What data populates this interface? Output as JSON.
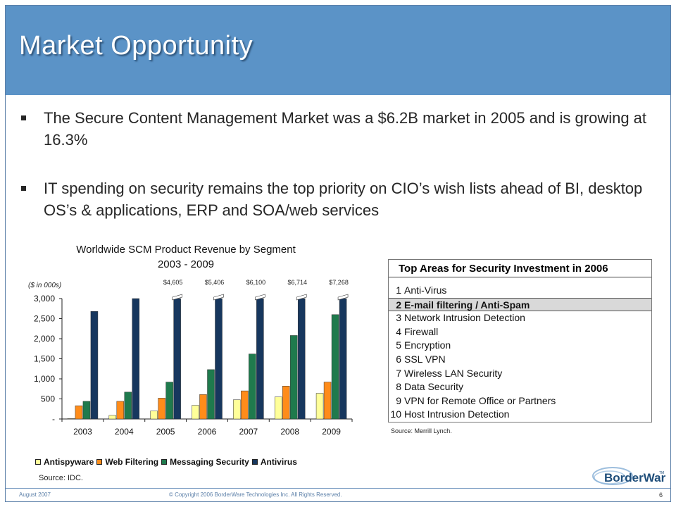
{
  "slide": {
    "title": "Market Opportunity",
    "bullets": [
      "The Secure Content Management Market was a $6.2B market in 2005 and is growing at 16.3%",
      "IT spending on security remains the top priority on CIO’s wish lists ahead of BI, desktop OS’s & applications, ERP and SOA/web services"
    ]
  },
  "chart_data": {
    "type": "bar",
    "title": "Worldwide SCM Product Revenue by Segment",
    "subtitle": "2003 - 2009",
    "ylabel": "($ in 000s)",
    "categories": [
      "2003",
      "2004",
      "2005",
      "2006",
      "2007",
      "2008",
      "2009"
    ],
    "ylim": [
      0,
      3000
    ],
    "yticks": [
      0,
      500,
      1000,
      1500,
      2000,
      2500,
      3000
    ],
    "ytick_labels": [
      "-",
      "500",
      "1,000",
      "1,500",
      "2,000",
      "2,500",
      "3,000"
    ],
    "series": [
      {
        "name": "Antispyware",
        "color": "#ffff99",
        "values": [
          10,
          90,
          200,
          340,
          480,
          550,
          640
        ]
      },
      {
        "name": "Web Filtering",
        "color": "#ff8c1a",
        "values": [
          330,
          440,
          520,
          610,
          700,
          820,
          920
        ]
      },
      {
        "name": "Messaging Security",
        "color": "#1f7a4d",
        "values": [
          440,
          670,
          920,
          1230,
          1620,
          2080,
          2600
        ]
      },
      {
        "name": "Antivirus",
        "color": "#17375e",
        "values": [
          2680,
          3000,
          3000,
          3000,
          3000,
          3000,
          3000
        ]
      }
    ],
    "antivirus_break_labels": [
      "$4,605",
      "$5,406",
      "$6,100",
      "$6,714",
      "$7,268"
    ],
    "antivirus_break_from_index": 2,
    "grid": false,
    "legend": "bottom",
    "source": "Source:  IDC."
  },
  "security_table": {
    "title": "Top Areas for Security Investment in 2006",
    "items": [
      {
        "rank": "1",
        "label": "Anti-Virus"
      },
      {
        "rank": "2",
        "label": "E-mail filtering / Anti-Spam"
      },
      {
        "rank": "3",
        "label": "Network Intrusion Detection"
      },
      {
        "rank": "4",
        "label": "Firewall"
      },
      {
        "rank": "5",
        "label": "Encryption"
      },
      {
        "rank": "6",
        "label": "SSL VPN"
      },
      {
        "rank": "7",
        "label": "Wireless LAN Security"
      },
      {
        "rank": "8",
        "label": "Data Security"
      },
      {
        "rank": "9",
        "label": "VPN for Remote Office or Partners"
      },
      {
        "rank": "10",
        "label": "Host Intrusion Detection"
      }
    ],
    "highlight_rank": "2",
    "source": "Source:  Merrill Lynch."
  },
  "footer": {
    "date": "August 2007",
    "copyright": "© Copyright 2006 BorderWare Technologies Inc. All Rights Reserved.",
    "page": "6",
    "logo_text": "BorderWare",
    "logo_tm": "TM"
  },
  "colors": {
    "header": "#5b93c7",
    "highlight_row": "#d9d9d9"
  }
}
